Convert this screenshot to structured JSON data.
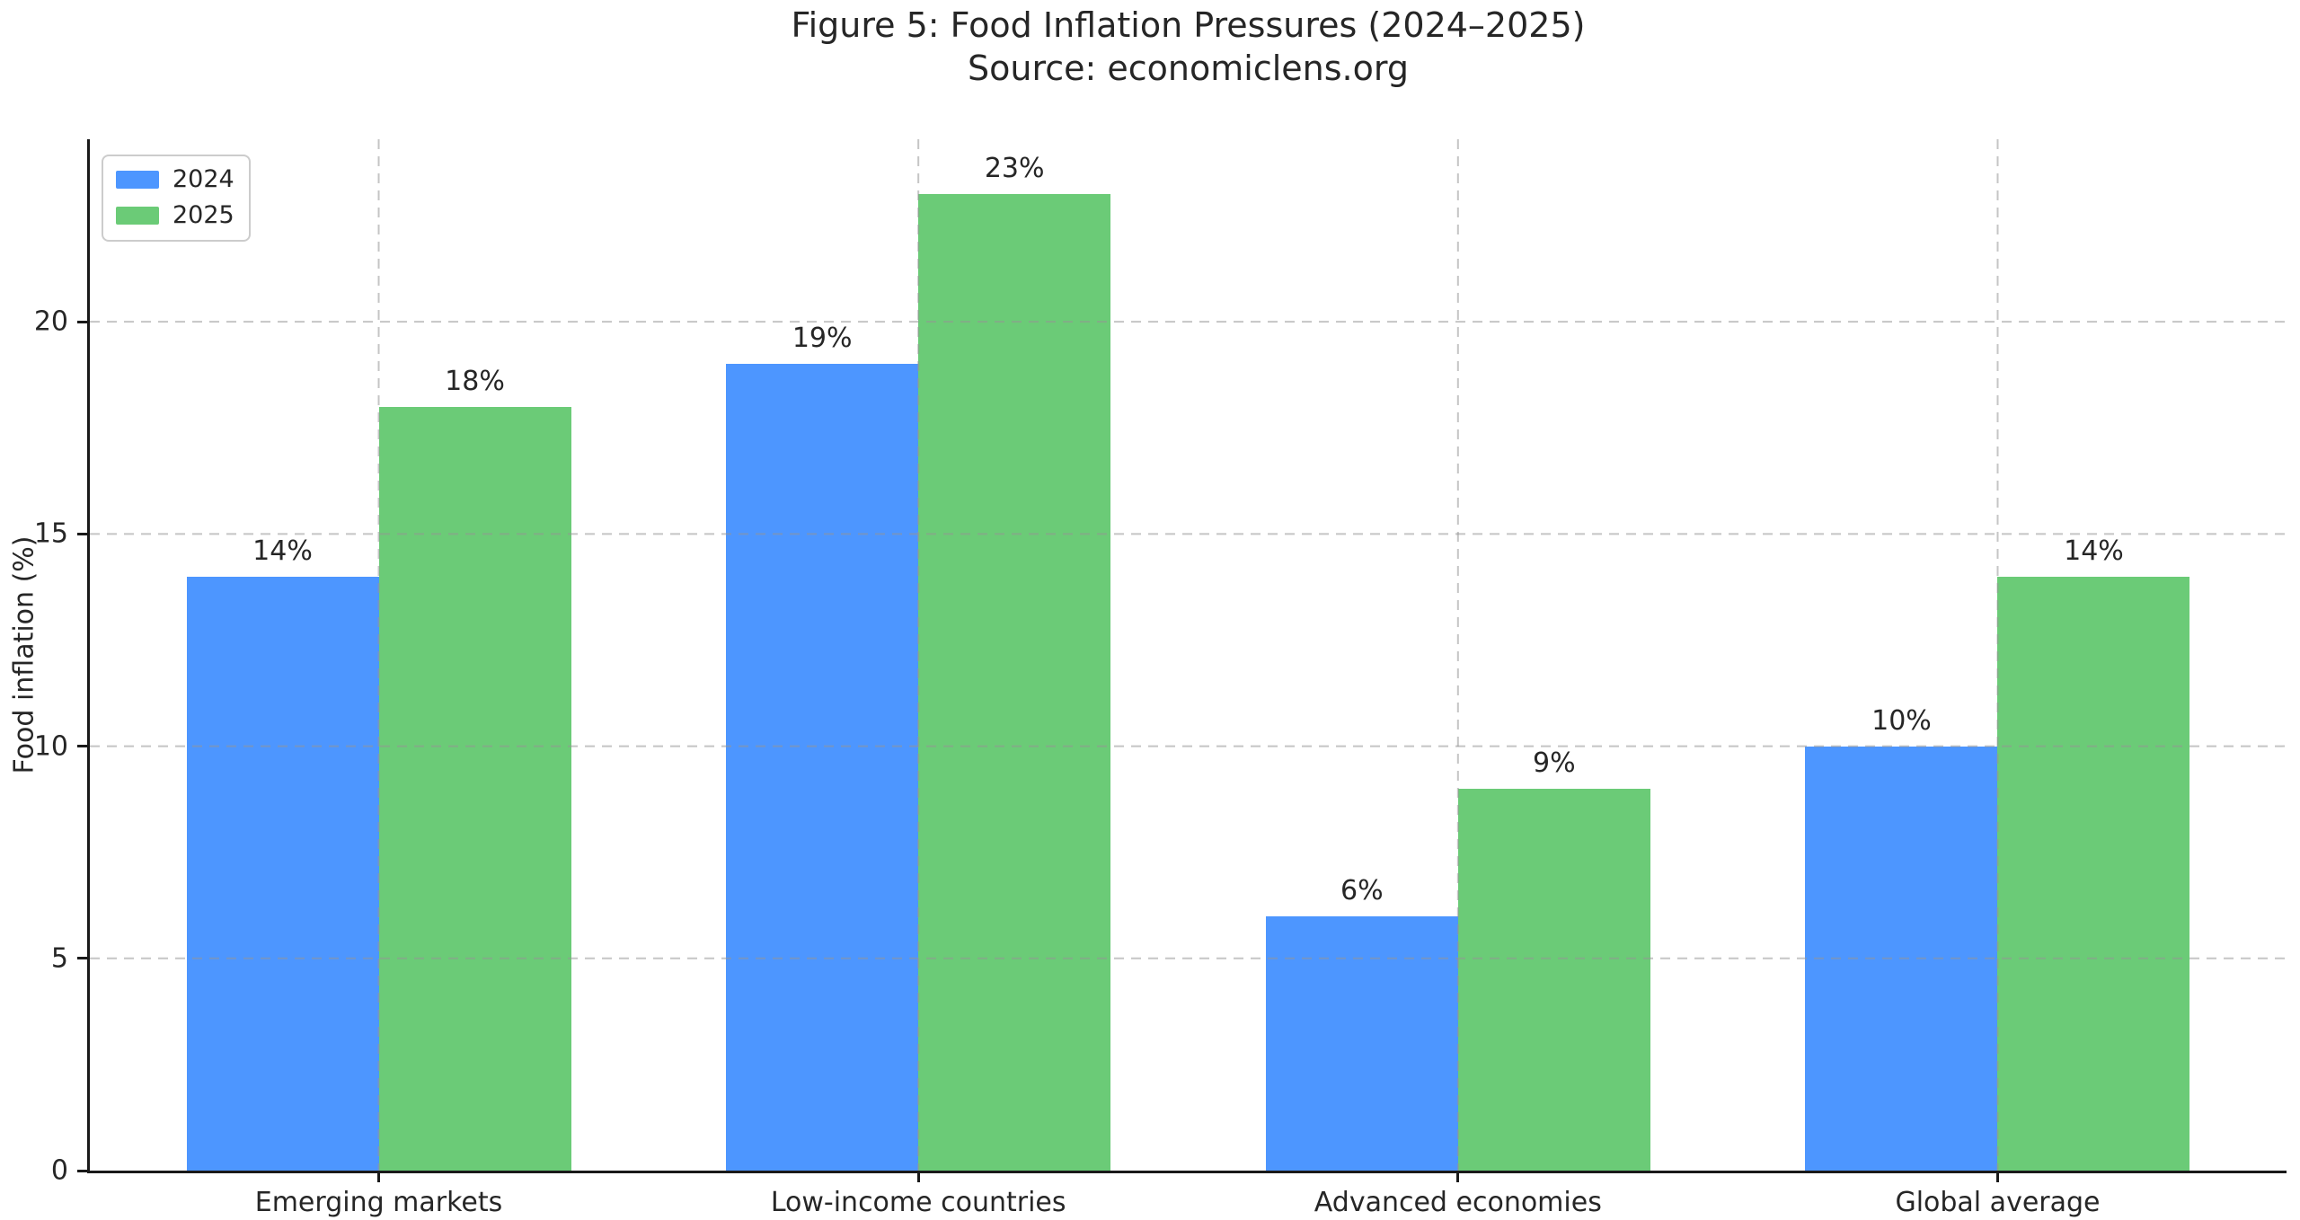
{
  "chart_data": {
    "type": "bar",
    "title": "Figure 5: Food Inflation Pressures (2024–2025)",
    "subtitle": "Source: economiclens.org",
    "categories": [
      "Emerging markets",
      "Low-income countries",
      "Advanced economies",
      "Global average"
    ],
    "series": [
      {
        "name": "2024",
        "color": "#4D96FF",
        "values": [
          14,
          19,
          6,
          10
        ],
        "labels": [
          "14%",
          "19%",
          "6%",
          "10%"
        ]
      },
      {
        "name": "2025",
        "color": "#6BCB77",
        "values": [
          18,
          23,
          9,
          14
        ],
        "labels": [
          "18%",
          "23%",
          "9%",
          "14%"
        ]
      }
    ],
    "xlabel": "",
    "ylabel": "Food inflation (%)",
    "ylim": [
      0,
      24.3
    ],
    "yticks": [
      0,
      5,
      10,
      15,
      20
    ],
    "grid": true,
    "grid_style": "dashed",
    "legend_position": "upper left",
    "colors": {
      "axis": "#1a1a1a",
      "text": "#262626",
      "gridline": "#969696",
      "background": "#ffffff",
      "legend_border": "#cccccc"
    }
  }
}
